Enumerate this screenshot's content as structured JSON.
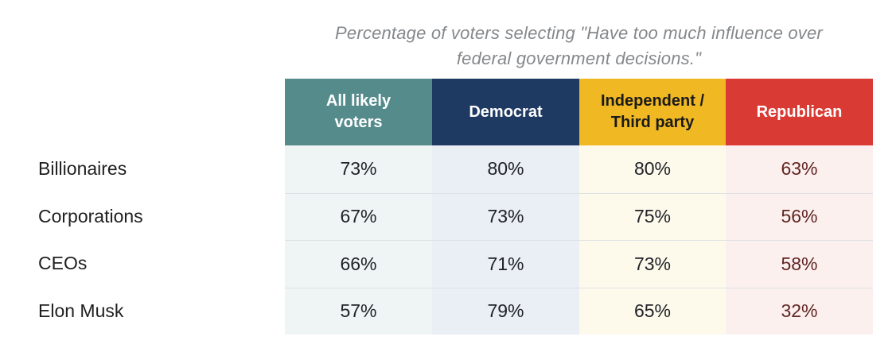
{
  "title": {
    "line1": "Percentage of voters selecting \"Have too much influence over",
    "line2": "federal government decisions.\""
  },
  "table": {
    "columns": [
      {
        "label": "All likely\nvoters",
        "header_bg": "#568b8c",
        "header_fg": "#ffffff",
        "body_bg": "#eff4f4",
        "value_fg": "#202228"
      },
      {
        "label": "Democrat",
        "header_bg": "#1e3a63",
        "header_fg": "#ffffff",
        "body_bg": "#eaeef5",
        "value_fg": "#202228"
      },
      {
        "label": "Independent /\nThird party",
        "header_bg": "#f0b823",
        "header_fg": "#1a1a1a",
        "body_bg": "#fdf9eb",
        "value_fg": "#202228"
      },
      {
        "label": "Republican",
        "header_bg": "#d93a34",
        "header_fg": "#ffffff",
        "body_bg": "#fcf0ef",
        "value_fg": "#602523"
      }
    ],
    "rows": [
      {
        "label": "Billionaires",
        "values": [
          "73%",
          "80%",
          "80%",
          "63%"
        ]
      },
      {
        "label": "Corporations",
        "values": [
          "67%",
          "73%",
          "75%",
          "56%"
        ]
      },
      {
        "label": "CEOs",
        "values": [
          "66%",
          "71%",
          "73%",
          "58%"
        ]
      },
      {
        "label": "Elon Musk",
        "values": [
          "57%",
          "79%",
          "65%",
          "32%"
        ]
      }
    ]
  },
  "chart_data": {
    "type": "table",
    "title": "Percentage of voters selecting \"Have too much influence over federal government decisions.\"",
    "categories": [
      "Billionaires",
      "Corporations",
      "CEOs",
      "Elon Musk"
    ],
    "series": [
      {
        "name": "All likely voters",
        "values": [
          73,
          67,
          66,
          57
        ]
      },
      {
        "name": "Democrat",
        "values": [
          80,
          73,
          71,
          79
        ]
      },
      {
        "name": "Independent / Third party",
        "values": [
          80,
          75,
          73,
          65
        ]
      },
      {
        "name": "Republican",
        "values": [
          63,
          56,
          58,
          32
        ]
      }
    ],
    "unit": "%",
    "legend_position": "top",
    "grid": false
  }
}
